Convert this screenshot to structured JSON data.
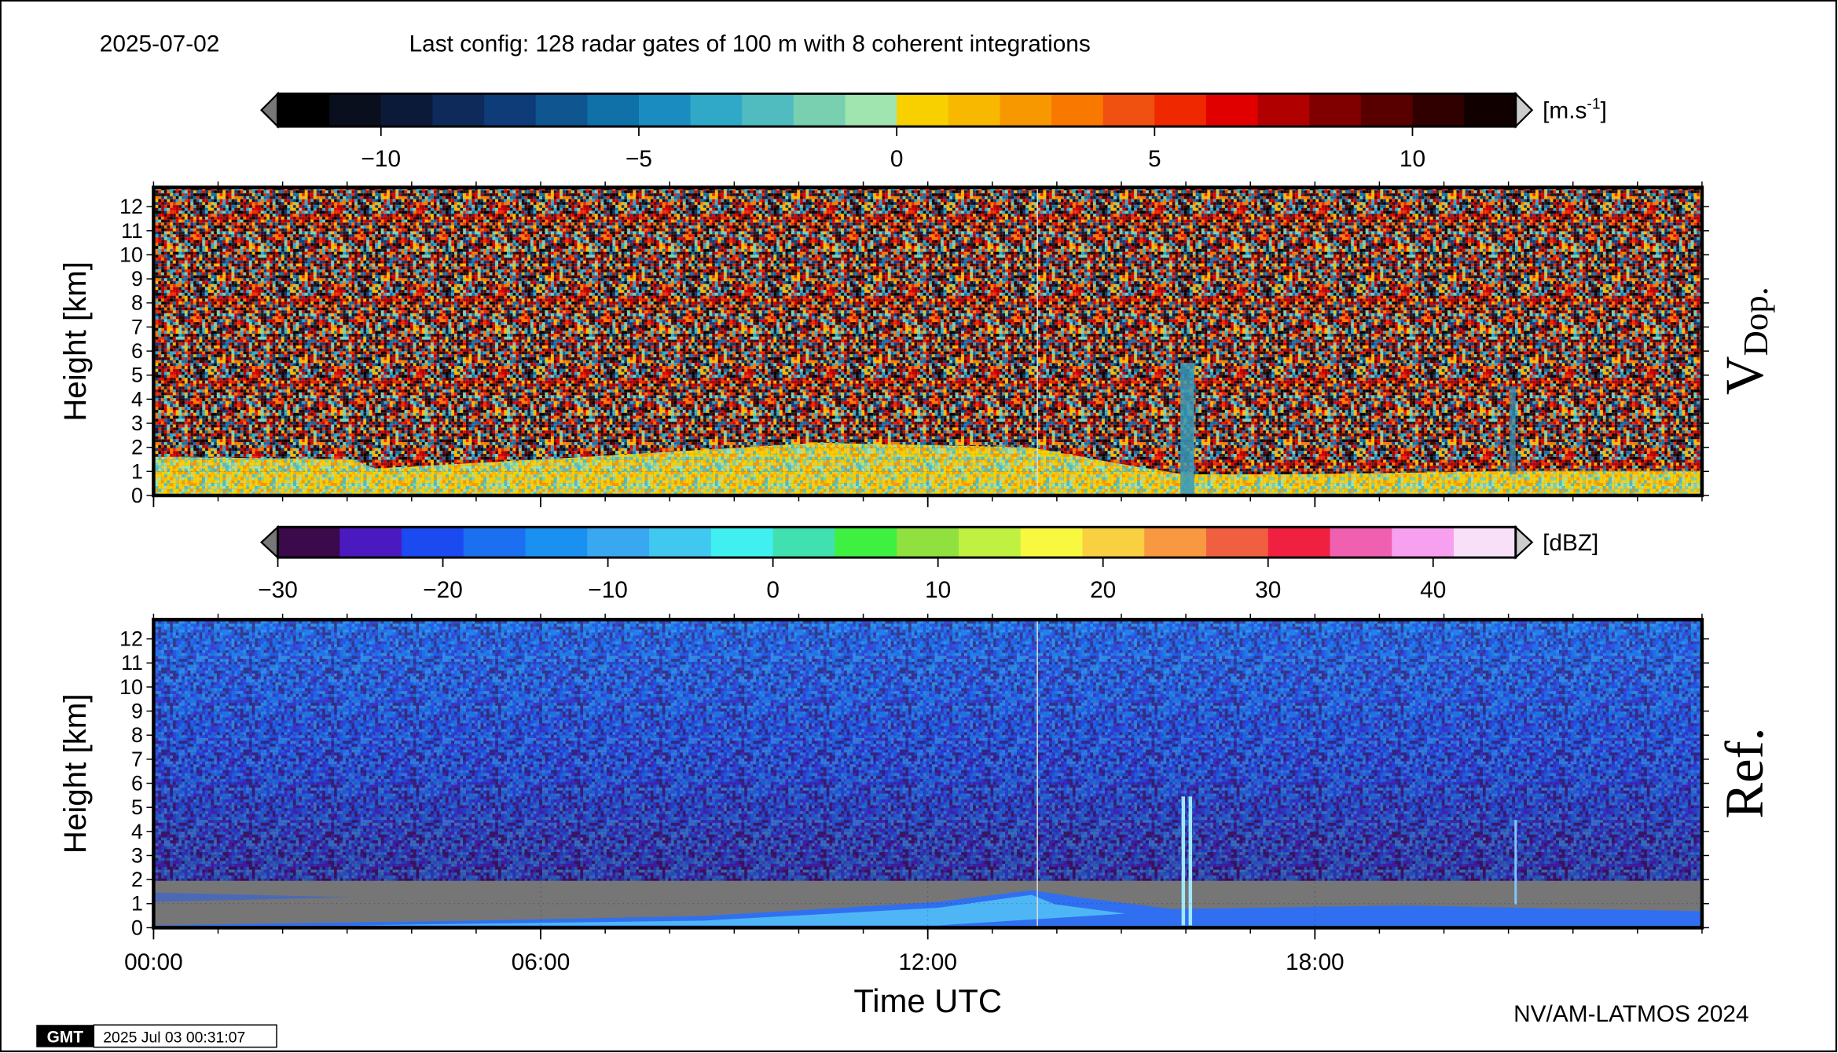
{
  "header": {
    "date": "2025-07-02",
    "config": "Last config: 128 radar gates of 100 m with 8 coherent integrations"
  },
  "chart_data": [
    {
      "type": "heatmap",
      "panel_label": "V",
      "panel_label_sub": "Dop.",
      "y_label": "Height [km]",
      "ylim": [
        0,
        12.8
      ],
      "yticks": [
        0,
        1,
        2,
        3,
        4,
        5,
        6,
        7,
        8,
        9,
        10,
        11,
        12
      ],
      "xlim": [
        0,
        24
      ],
      "grid": true,
      "colorbar": {
        "unit": "[m.s",
        "unit_sup": "-1",
        "unit_close": "]",
        "clim": [
          -12,
          12
        ],
        "ticks": [
          {
            "value": -10,
            "label": "−10"
          },
          {
            "value": -5,
            "label": "−5"
          },
          0,
          5,
          10
        ],
        "colors": [
          "#000000",
          "#0a0f1e",
          "#0c1a3a",
          "#0d2a5a",
          "#0e3c78",
          "#0f5590",
          "#1070a8",
          "#1a8cc0",
          "#30a8c8",
          "#50bcc0",
          "#78d0b0",
          "#a0e4b0",
          "#f8d000",
          "#f8b800",
          "#f89800",
          "#f87800",
          "#f05010",
          "#f02800",
          "#e00000",
          "#b00000",
          "#800000",
          "#580000",
          "#300000",
          "#100000"
        ]
      }
    },
    {
      "type": "heatmap",
      "panel_label": "Ref.",
      "y_label": "Height [km]",
      "ylim": [
        0,
        12.8
      ],
      "yticks": [
        0,
        1,
        2,
        3,
        4,
        5,
        6,
        7,
        8,
        9,
        10,
        11,
        12
      ],
      "xlim": [
        0,
        24
      ],
      "grid": true,
      "xticks": [
        {
          "value": 0,
          "label": "00:00"
        },
        {
          "value": 6,
          "label": "06:00"
        },
        {
          "value": 12,
          "label": "12:00"
        },
        {
          "value": 18,
          "label": "18:00"
        }
      ],
      "x_label": "Time UTC",
      "colorbar": {
        "unit": "[dBZ]",
        "clim": [
          -30,
          45
        ],
        "ticks": [
          {
            "value": -30,
            "label": "−30"
          },
          {
            "value": -20,
            "label": "−20"
          },
          {
            "value": -10,
            "label": "−10"
          },
          0,
          10,
          20,
          30,
          40
        ],
        "colors": [
          "#3a0a4a",
          "#4a1ac0",
          "#1a4af0",
          "#1a70f0",
          "#1a90f0",
          "#3aa8f0",
          "#40c8f0",
          "#40f0f0",
          "#40e0b0",
          "#40f040",
          "#90e040",
          "#c0f040",
          "#f8f840",
          "#f8d040",
          "#f89840",
          "#f06040",
          "#f02040",
          "#f060b0",
          "#f8a0f0",
          "#f8e0f8"
        ]
      }
    }
  ],
  "footer": {
    "credit": "NV/AM-LATMOS 2024",
    "logo": "GMT",
    "timestamp": "2025 Jul 03 00:31:07"
  }
}
